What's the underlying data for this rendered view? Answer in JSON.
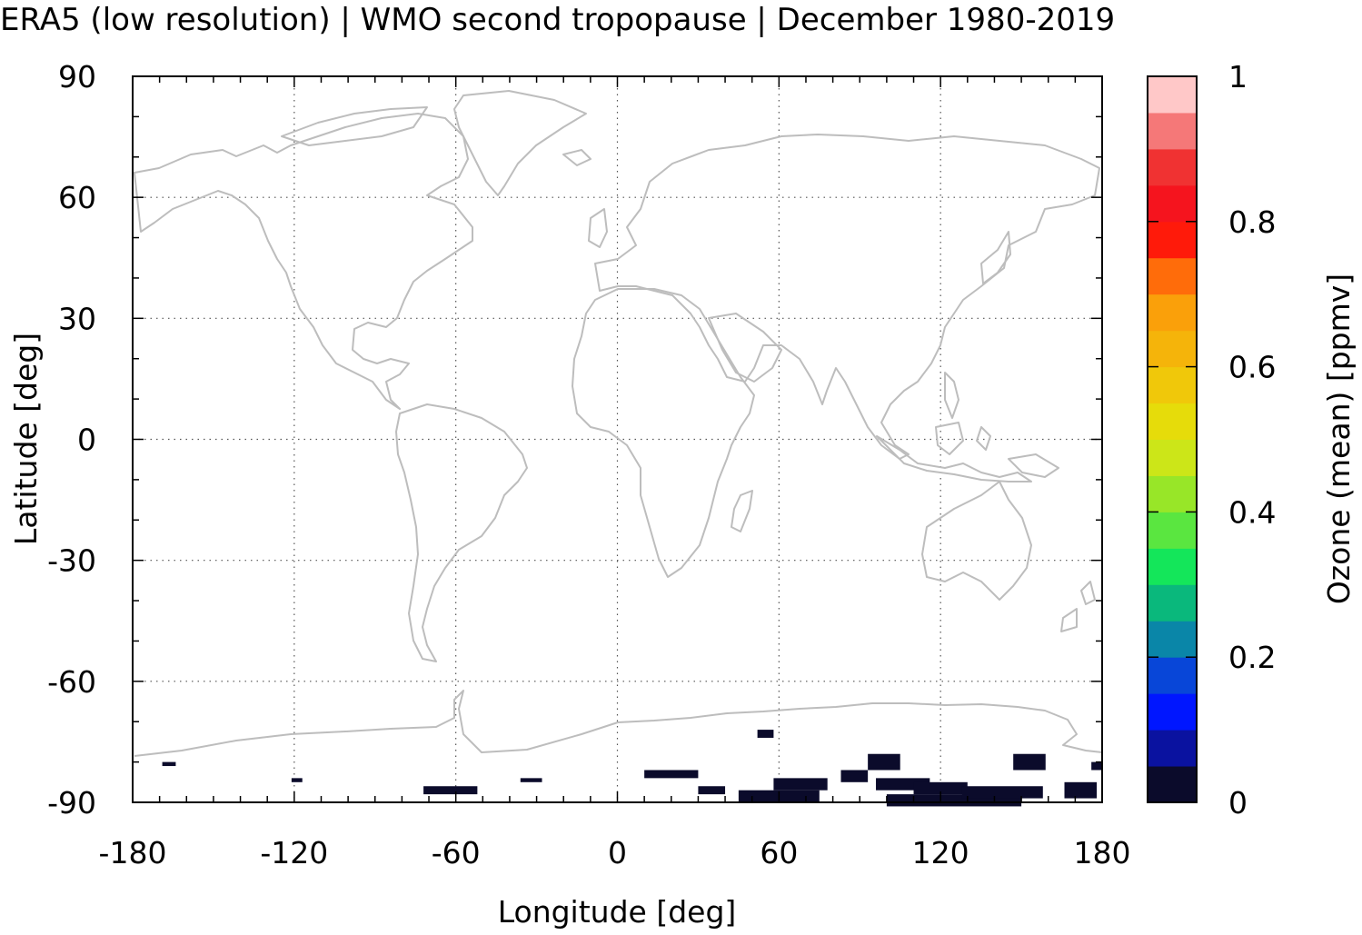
{
  "chart_data": {
    "type": "heatmap",
    "title": "ERA5 (low resolution) | WMO second tropopause | December 1980-2019",
    "xlabel": "Longitude [deg]",
    "ylabel": "Latitude [deg]",
    "xlim": [
      -180,
      180
    ],
    "ylim": [
      -90,
      90
    ],
    "xticks": [
      -180,
      -120,
      -60,
      0,
      60,
      120,
      180
    ],
    "yticks": [
      90,
      60,
      30,
      0,
      -30,
      -60,
      -90
    ],
    "xtick_labels": [
      "-180",
      "-120",
      "-60",
      "0",
      "60",
      "120",
      "180"
    ],
    "ytick_labels": [
      "90",
      "60",
      "30",
      "0",
      "-30",
      "-60",
      "-90"
    ],
    "grid": true,
    "background": "coastlines",
    "colorbar": {
      "label": "Ozone (mean) [ppmv]",
      "range": [
        0,
        1
      ],
      "ticks": [
        0,
        0.2,
        0.4,
        0.6,
        0.8,
        1
      ],
      "tick_labels": [
        "0",
        "0.2",
        "0.4",
        "0.6",
        "0.8",
        "1"
      ],
      "colors": [
        "#0b0b2b",
        "#0a12a0",
        "#0016ff",
        "#0846d8",
        "#0a86a8",
        "#0ab87c",
        "#14e65a",
        "#5ae640",
        "#98e628",
        "#cce618",
        "#e6dc0a",
        "#f0c80a",
        "#f5b40a",
        "#faa00a",
        "#ff6c0a",
        "#ff1a0a",
        "#f5141e",
        "#f03232",
        "#f57878",
        "#ffc8c8"
      ]
    },
    "cells": [
      {
        "lon": -169,
        "lat": -80,
        "dlon": 5,
        "dlat": 1,
        "value": 0.02
      },
      {
        "lon": -121,
        "lat": -84,
        "dlon": 4,
        "dlat": 1,
        "value": 0.02
      },
      {
        "lon": -72,
        "lat": -86,
        "dlon": 20,
        "dlat": 2,
        "value": 0.02
      },
      {
        "lon": -36,
        "lat": -84,
        "dlon": 8,
        "dlat": 1,
        "value": 0.02
      },
      {
        "lon": 10,
        "lat": -82,
        "dlon": 20,
        "dlat": 2,
        "value": 0.02
      },
      {
        "lon": 30,
        "lat": -86,
        "dlon": 10,
        "dlat": 2,
        "value": 0.02
      },
      {
        "lon": 45,
        "lat": -87,
        "dlon": 30,
        "dlat": 3,
        "value": 0.02
      },
      {
        "lon": 52,
        "lat": -72,
        "dlon": 6,
        "dlat": 2,
        "value": 0.02
      },
      {
        "lon": 58,
        "lat": -84,
        "dlon": 20,
        "dlat": 3,
        "value": 0.02
      },
      {
        "lon": 83,
        "lat": -82,
        "dlon": 10,
        "dlat": 3,
        "value": 0.02
      },
      {
        "lon": 93,
        "lat": -78,
        "dlon": 12,
        "dlat": 4,
        "value": 0.02
      },
      {
        "lon": 96,
        "lat": -84,
        "dlon": 20,
        "dlat": 3,
        "value": 0.02
      },
      {
        "lon": 100,
        "lat": -88,
        "dlon": 50,
        "dlat": 3,
        "value": 0.02
      },
      {
        "lon": 110,
        "lat": -85,
        "dlon": 20,
        "dlat": 3,
        "value": 0.02
      },
      {
        "lon": 128,
        "lat": -86,
        "dlon": 30,
        "dlat": 3,
        "value": 0.02
      },
      {
        "lon": 147,
        "lat": -78,
        "dlon": 12,
        "dlat": 4,
        "value": 0.02
      },
      {
        "lon": 166,
        "lat": -85,
        "dlon": 12,
        "dlat": 4,
        "value": 0.02
      },
      {
        "lon": 176,
        "lat": -80,
        "dlon": 4,
        "dlat": 2,
        "value": 0.02
      }
    ]
  }
}
